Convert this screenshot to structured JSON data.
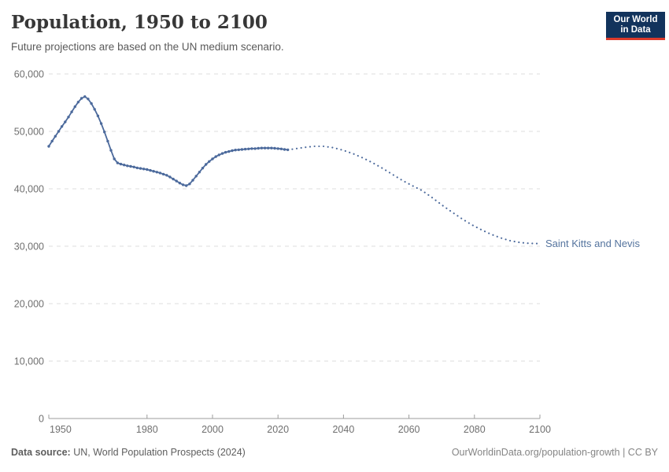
{
  "header": {
    "title": "Population, 1950 to 2100",
    "subtitle": "Future projections are based on the UN medium scenario.",
    "logo": {
      "line1": "Our World",
      "line2": "in Data"
    }
  },
  "colors": {
    "line": "#4C6A9C",
    "entity_label": "#55749e",
    "grid": "#dedede",
    "axis": "#9c9c9c",
    "tick_label": "#6f6f6f",
    "logo_bg": "#12335c",
    "logo_accent": "#dc3a2b"
  },
  "chart_data": {
    "type": "line",
    "title": "Population, 1950 to 2100",
    "subtitle": "Future projections are based on the UN medium scenario.",
    "entity": "Saint Kitts and Nevis",
    "end_label": "Saint Kitts and Nevis",
    "xlabel": "",
    "ylabel": "",
    "xlim": [
      1950,
      2100
    ],
    "ylim": [
      0,
      60000
    ],
    "grid": "horizontal-dashed",
    "x_ticks": [
      1950,
      1980,
      2000,
      2020,
      2040,
      2060,
      2080,
      2100
    ],
    "x_tick_labels": [
      "1950",
      "1980",
      "2000",
      "2020",
      "2040",
      "2060",
      "2080",
      "2100"
    ],
    "y_ticks": [
      0,
      10000,
      20000,
      30000,
      40000,
      50000,
      60000
    ],
    "y_tick_labels": [
      "0",
      "10,000",
      "20,000",
      "30,000",
      "40,000",
      "50,000",
      "60,000"
    ],
    "series": [
      {
        "name": "Saint Kitts and Nevis — estimates (solid)",
        "style": "solid",
        "markers": true,
        "points": [
          [
            1950,
            47400
          ],
          [
            1951,
            48300
          ],
          [
            1952,
            49150
          ],
          [
            1953,
            50000
          ],
          [
            1954,
            50850
          ],
          [
            1955,
            51650
          ],
          [
            1956,
            52500
          ],
          [
            1957,
            53400
          ],
          [
            1958,
            54300
          ],
          [
            1959,
            55100
          ],
          [
            1960,
            55750
          ],
          [
            1961,
            56050
          ],
          [
            1962,
            55650
          ],
          [
            1963,
            54850
          ],
          [
            1964,
            53850
          ],
          [
            1965,
            52700
          ],
          [
            1966,
            51350
          ],
          [
            1967,
            49900
          ],
          [
            1968,
            48300
          ],
          [
            1969,
            46700
          ],
          [
            1970,
            45200
          ],
          [
            1971,
            44500
          ],
          [
            1972,
            44300
          ],
          [
            1973,
            44150
          ],
          [
            1974,
            44000
          ],
          [
            1975,
            43900
          ],
          [
            1976,
            43800
          ],
          [
            1977,
            43650
          ],
          [
            1978,
            43550
          ],
          [
            1979,
            43450
          ],
          [
            1980,
            43350
          ],
          [
            1981,
            43200
          ],
          [
            1982,
            43050
          ],
          [
            1983,
            42900
          ],
          [
            1984,
            42750
          ],
          [
            1985,
            42550
          ],
          [
            1986,
            42350
          ],
          [
            1987,
            42050
          ],
          [
            1988,
            41700
          ],
          [
            1989,
            41350
          ],
          [
            1990,
            41000
          ],
          [
            1991,
            40700
          ],
          [
            1992,
            40550
          ],
          [
            1993,
            40850
          ],
          [
            1994,
            41500
          ],
          [
            1995,
            42200
          ],
          [
            1996,
            42900
          ],
          [
            1997,
            43600
          ],
          [
            1998,
            44250
          ],
          [
            1999,
            44750
          ],
          [
            2000,
            45200
          ],
          [
            2001,
            45600
          ],
          [
            2002,
            45900
          ],
          [
            2003,
            46150
          ],
          [
            2004,
            46350
          ],
          [
            2005,
            46500
          ],
          [
            2006,
            46650
          ],
          [
            2007,
            46750
          ],
          [
            2008,
            46800
          ],
          [
            2009,
            46850
          ],
          [
            2010,
            46900
          ],
          [
            2011,
            46950
          ],
          [
            2012,
            47000
          ],
          [
            2013,
            47000
          ],
          [
            2014,
            47050
          ],
          [
            2015,
            47100
          ],
          [
            2016,
            47100
          ],
          [
            2017,
            47100
          ],
          [
            2018,
            47100
          ],
          [
            2019,
            47050
          ],
          [
            2020,
            47000
          ],
          [
            2021,
            46950
          ],
          [
            2022,
            46850
          ],
          [
            2023,
            46800
          ]
        ]
      },
      {
        "name": "Saint Kitts and Nevis — UN medium projection (dotted)",
        "style": "dotted",
        "markers": false,
        "points": [
          [
            2023,
            46800
          ],
          [
            2025,
            46950
          ],
          [
            2028,
            47200
          ],
          [
            2031,
            47400
          ],
          [
            2034,
            47400
          ],
          [
            2037,
            47150
          ],
          [
            2040,
            46700
          ],
          [
            2043,
            46100
          ],
          [
            2046,
            45350
          ],
          [
            2049,
            44500
          ],
          [
            2052,
            43550
          ],
          [
            2055,
            42500
          ],
          [
            2058,
            41450
          ],
          [
            2061,
            40550
          ],
          [
            2064,
            39700
          ],
          [
            2067,
            38500
          ],
          [
            2070,
            37200
          ],
          [
            2073,
            36000
          ],
          [
            2076,
            34850
          ],
          [
            2079,
            33800
          ],
          [
            2082,
            32900
          ],
          [
            2085,
            32100
          ],
          [
            2088,
            31450
          ],
          [
            2091,
            30950
          ],
          [
            2094,
            30650
          ],
          [
            2097,
            30500
          ],
          [
            2100,
            30450
          ]
        ]
      }
    ]
  },
  "footer": {
    "source_label": "Data source:",
    "source_text": " UN, World Population Prospects (2024)",
    "link_text": "OurWorldinData.org/population-growth | CC BY"
  }
}
